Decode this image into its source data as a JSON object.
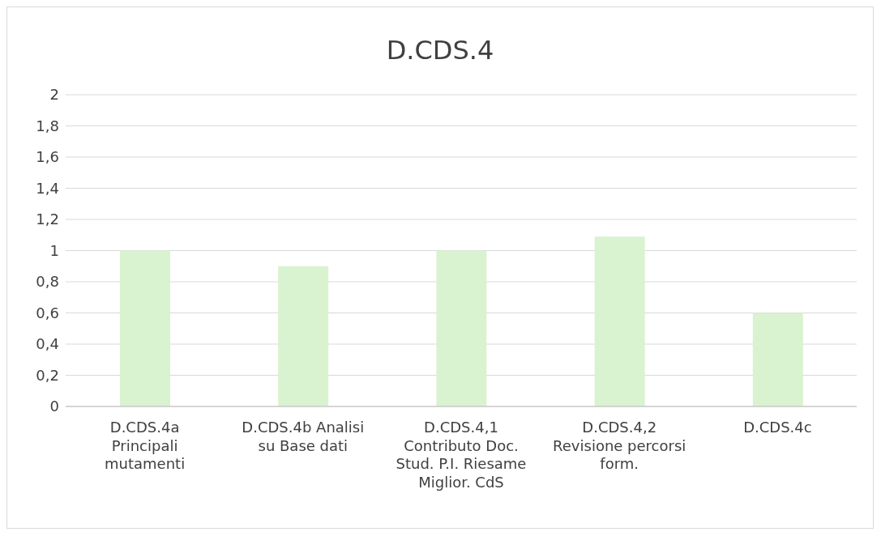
{
  "chart_data": {
    "type": "bar",
    "title": "D.CDS.4",
    "categories": [
      "D.CDS.4a Principali mutamenti",
      "D.CDS.4b Analisi su Base dati",
      "D.CDS.4,1 Contributo Doc. Stud. P.I. Riesame Miglior. CdS",
      "D.CDS.4,2 Revisione percorsi form.",
      "D.CDS.4c"
    ],
    "values": [
      1,
      0.9,
      1,
      1.09,
      0.6
    ],
    "color": "#d9f2d0",
    "ylim": [
      0,
      2
    ],
    "yticks": [
      0,
      {
        "value": 0.2,
        "label": "0,2"
      },
      {
        "value": 0.4,
        "label": "0,4"
      },
      {
        "value": 0.6,
        "label": "0,6"
      },
      {
        "value": 0.8,
        "label": "0,8"
      },
      1,
      {
        "value": 1.2,
        "label": "1,2"
      },
      {
        "value": 1.4,
        "label": "1,4"
      },
      {
        "value": 1.6,
        "label": "1,6"
      },
      {
        "value": 1.8,
        "label": "1,8"
      },
      2
    ],
    "grid": "y"
  }
}
